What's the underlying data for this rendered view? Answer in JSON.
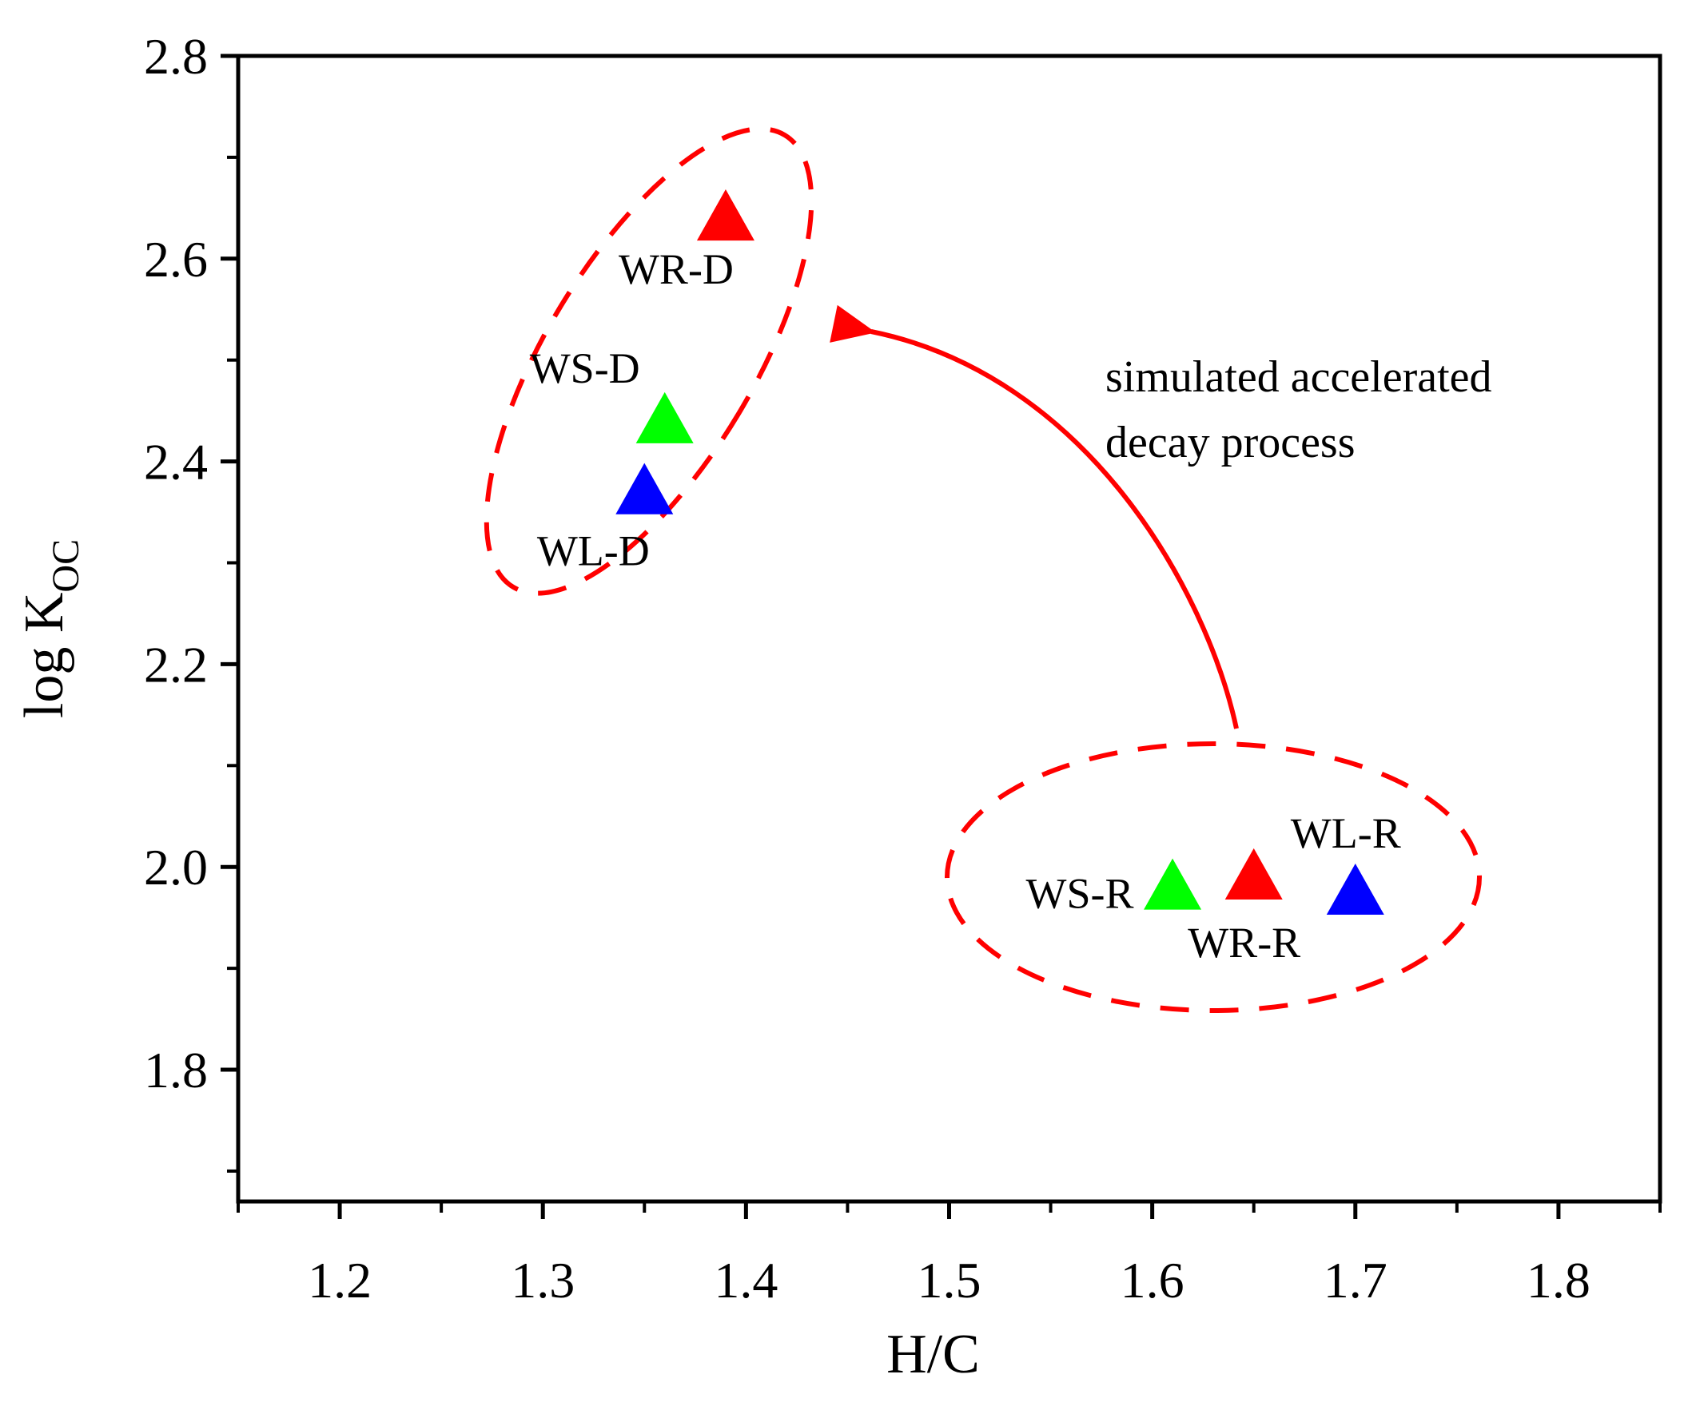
{
  "chart_data": {
    "type": "scatter",
    "title": "",
    "xlabel": "H/C",
    "ylabel": "log K",
    "ylabel_subscript": "OC",
    "xlim": [
      1.15,
      1.85
    ],
    "ylim": [
      1.67,
      2.8
    ],
    "x_ticks": [
      "1.2",
      "1.3",
      "1.4",
      "1.5",
      "1.6",
      "1.7",
      "1.8"
    ],
    "y_ticks": [
      "1.8",
      "2.0",
      "2.2",
      "2.4",
      "2.6",
      "2.8"
    ],
    "marker": "triangle",
    "colors": {
      "red": "#ff0000",
      "green": "#00ff00",
      "blue": "#0000ff",
      "ring": "#ff0000",
      "arrow": "#ff0000"
    },
    "points": [
      {
        "label": "WR-D",
        "x": 1.39,
        "y": 2.64,
        "color": "#ff0000",
        "group": "decayed"
      },
      {
        "label": "WS-D",
        "x": 1.36,
        "y": 2.44,
        "color": "#00ff00",
        "group": "decayed"
      },
      {
        "label": "WL-D",
        "x": 1.35,
        "y": 2.37,
        "color": "#0000ff",
        "group": "decayed"
      },
      {
        "label": "WS-R",
        "x": 1.61,
        "y": 1.98,
        "color": "#00ff00",
        "group": "raw"
      },
      {
        "label": "WR-R",
        "x": 1.65,
        "y": 1.99,
        "color": "#ff0000",
        "group": "raw"
      },
      {
        "label": "WL-R",
        "x": 1.7,
        "y": 1.975,
        "color": "#0000ff",
        "group": "raw"
      }
    ],
    "annotation": {
      "line1": "simulated accelerated",
      "line2": "decay process"
    }
  }
}
